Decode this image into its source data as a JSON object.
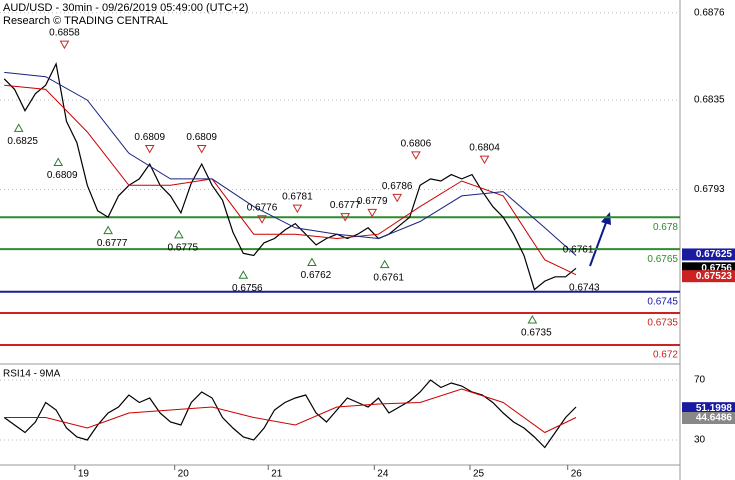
{
  "chart_data": [
    {
      "type": "line",
      "title": "AUD/USD - 30min - 09/26/2019 05:49:00 (UTC+2)",
      "subtitle": "Research © TRADING CENTRAL",
      "xlim": [
        0,
        327
      ],
      "ylim": [
        0.6712,
        0.6882
      ],
      "yticks": [
        0.6793,
        0.6835,
        0.6876
      ],
      "grid": true,
      "series": [
        {
          "color": "#000000",
          "x": [
            2,
            7,
            12,
            17,
            22,
            27,
            32,
            37,
            42,
            47,
            52,
            57,
            62,
            67,
            72,
            77,
            82,
            87,
            92,
            97,
            102,
            107,
            112,
            117,
            122,
            127,
            132,
            137,
            142,
            147,
            152,
            157,
            162,
            167,
            172,
            177,
            182,
            187,
            192,
            197,
            202,
            207,
            212,
            217,
            222,
            227,
            232,
            237,
            242,
            247,
            252,
            257,
            262,
            267,
            272,
            277
          ],
          "values": [
            0.6845,
            0.684,
            0.683,
            0.6838,
            0.6842,
            0.6852,
            0.6825,
            0.6815,
            0.6795,
            0.6783,
            0.678,
            0.679,
            0.6795,
            0.6798,
            0.6805,
            0.6795,
            0.679,
            0.6782,
            0.6796,
            0.6805,
            0.6795,
            0.6788,
            0.6773,
            0.6763,
            0.6762,
            0.6768,
            0.677,
            0.6774,
            0.6777,
            0.6772,
            0.6767,
            0.677,
            0.6772,
            0.677,
            0.6772,
            0.6775,
            0.677,
            0.6772,
            0.6776,
            0.678,
            0.6795,
            0.6798,
            0.6797,
            0.68,
            0.6798,
            0.68,
            0.6792,
            0.6785,
            0.678,
            0.6772,
            0.6762,
            0.6746,
            0.675,
            0.6752,
            0.6752,
            0.6756
          ]
        },
        {
          "color": "#cc0000",
          "x": [
            2,
            22,
            42,
            62,
            82,
            102,
            122,
            142,
            162,
            182,
            202,
            222,
            242,
            262,
            277
          ],
          "values": [
            0.6842,
            0.684,
            0.682,
            0.6795,
            0.6795,
            0.6798,
            0.6772,
            0.6772,
            0.677,
            0.6772,
            0.6785,
            0.6797,
            0.679,
            0.676,
            0.6753
          ]
        },
        {
          "color": "#1a237e",
          "x": [
            2,
            22,
            42,
            62,
            82,
            102,
            122,
            142,
            162,
            182,
            202,
            222,
            242,
            262,
            277
          ],
          "values": [
            0.6848,
            0.6846,
            0.6835,
            0.681,
            0.6798,
            0.6798,
            0.6785,
            0.6775,
            0.6772,
            0.677,
            0.6778,
            0.679,
            0.6792,
            0.6775,
            0.6762
          ]
        }
      ],
      "levels": [
        {
          "value": 0.678,
          "color": "#2e8b2e"
        },
        {
          "value": 0.6765,
          "color": "#2e8b2e"
        },
        {
          "value": 0.6745,
          "color": "#1a1aa0"
        },
        {
          "value": 0.6735,
          "color": "#cc2222"
        },
        {
          "value": 0.672,
          "color": "#cc2222"
        }
      ],
      "peaks": [
        {
          "x": 31,
          "value": 0.6858
        },
        {
          "x": 72,
          "value": 0.6809
        },
        {
          "x": 97,
          "value": 0.6809
        },
        {
          "x": 126,
          "value": 0.6776
        },
        {
          "x": 143,
          "value": 0.6781
        },
        {
          "x": 166,
          "value": 0.6777
        },
        {
          "x": 179,
          "value": 0.6779
        },
        {
          "x": 191,
          "value": 0.6786
        },
        {
          "x": 200,
          "value": 0.6806
        },
        {
          "x": 233,
          "value": 0.6804
        }
      ],
      "troughs": [
        {
          "x": 9,
          "value": 0.6825
        },
        {
          "x": 28,
          "value": 0.6809
        },
        {
          "x": 52,
          "value": 0.6777
        },
        {
          "x": 86,
          "value": 0.6775
        },
        {
          "x": 117,
          "value": 0.6756
        },
        {
          "x": 150,
          "value": 0.6762
        },
        {
          "x": 185,
          "value": 0.6761
        },
        {
          "x": 256,
          "value": 0.6735
        }
      ],
      "labels": [
        {
          "x": 278,
          "value": 0.6761
        },
        {
          "x": 281,
          "value": 0.6743
        }
      ],
      "price_tags": [
        {
          "value": 0.67625,
          "color": "#1a1aa0"
        },
        {
          "value": 0.6756,
          "color": "#000000"
        },
        {
          "value": 0.67523,
          "color": "#cc2222"
        }
      ]
    },
    {
      "type": "line",
      "title": "RSI14 - 9MA",
      "xlim": [
        0,
        327
      ],
      "ylim": [
        13.3,
        80
      ],
      "yticks": [
        30,
        70
      ],
      "grid": true,
      "xticks": [
        {
          "value": 36,
          "label": "19"
        },
        {
          "value": 84,
          "label": "20"
        },
        {
          "value": 129,
          "label": "21"
        },
        {
          "value": 180,
          "label": "24"
        },
        {
          "value": 226,
          "label": "25"
        },
        {
          "value": 273,
          "label": "26"
        }
      ],
      "series": [
        {
          "color": "#000000",
          "x": [
            2,
            7,
            12,
            17,
            22,
            27,
            32,
            37,
            42,
            47,
            52,
            57,
            62,
            67,
            72,
            77,
            82,
            87,
            92,
            97,
            102,
            107,
            112,
            117,
            122,
            127,
            132,
            137,
            142,
            147,
            152,
            157,
            162,
            167,
            172,
            177,
            182,
            187,
            192,
            197,
            202,
            207,
            212,
            217,
            222,
            227,
            232,
            237,
            242,
            247,
            252,
            257,
            262,
            267,
            272,
            277
          ],
          "values": [
            45,
            40,
            35,
            42,
            55,
            50,
            38,
            32,
            30,
            40,
            48,
            52,
            60,
            55,
            58,
            48,
            42,
            40,
            55,
            62,
            58,
            45,
            38,
            32,
            30,
            38,
            50,
            55,
            58,
            60,
            48,
            42,
            50,
            58,
            55,
            52,
            58,
            48,
            52,
            56,
            62,
            70,
            65,
            68,
            66,
            62,
            60,
            55,
            48,
            42,
            38,
            32,
            25,
            35,
            45,
            52
          ]
        },
        {
          "color": "#cc0000",
          "x": [
            2,
            22,
            42,
            62,
            82,
            102,
            122,
            142,
            162,
            182,
            202,
            222,
            242,
            262,
            277
          ],
          "values": [
            45,
            45,
            38,
            48,
            50,
            52,
            45,
            40,
            52,
            54,
            55,
            64,
            55,
            35,
            45
          ]
        }
      ],
      "price_tags": [
        {
          "value": 51.1998,
          "color": "#1a1aa0"
        },
        {
          "value": 44.6486,
          "color": "#888888"
        }
      ]
    }
  ]
}
